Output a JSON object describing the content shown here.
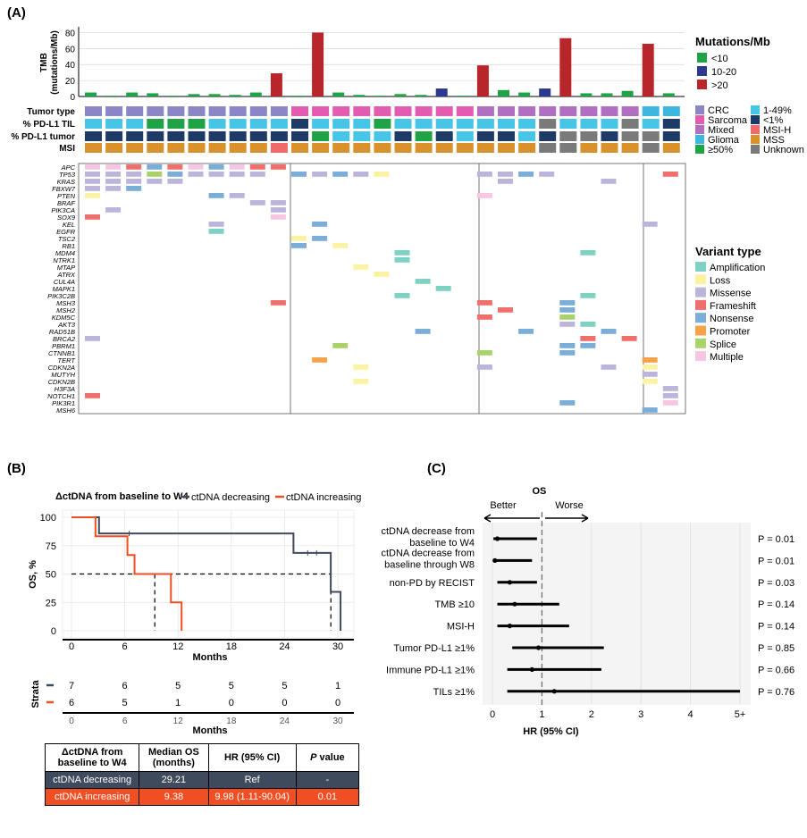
{
  "labels": {
    "a": "(A)",
    "b": "(B)",
    "c": "(C)"
  },
  "panelA": {
    "tmb_axis_label": "TMB\n(mutations/Mb)",
    "tmb_ticks": [
      "0",
      "20",
      "40",
      "60",
      "80"
    ],
    "tmb_values": [
      5,
      1,
      5,
      4,
      1,
      3,
      3,
      2,
      5,
      29,
      1,
      80,
      5,
      2,
      1,
      3,
      2,
      10,
      1,
      39,
      8,
      5,
      10,
      73,
      4,
      4,
      7,
      66,
      4
    ],
    "tmb_category": [
      "<10",
      "<10",
      "<10",
      "<10",
      "<10",
      "<10",
      "<10",
      "<10",
      "<10",
      ">20",
      "<10",
      ">20",
      "<10",
      "<10",
      "<10",
      "<10",
      "<10",
      "10-20",
      "<10",
      ">20",
      "<10",
      "<10",
      "10-20",
      ">20",
      "<10",
      "<10",
      "<10",
      ">20",
      "<10"
    ],
    "tmb_colors": {
      "<10": "#1fa346",
      "10-20": "#2b3a8f",
      ">20": "#b8262a"
    },
    "row_labels": [
      "Tumor type",
      "% PD-L1 TIL",
      "% PD-L1 tumor",
      "MSI"
    ],
    "tumor_type": [
      "CRC",
      "CRC",
      "CRC",
      "CRC",
      "CRC",
      "CRC",
      "CRC",
      "CRC",
      "CRC",
      "CRC",
      "Sarcoma",
      "Sarcoma",
      "Sarcoma",
      "Sarcoma",
      "Sarcoma",
      "Sarcoma",
      "Sarcoma",
      "Sarcoma",
      "Sarcoma",
      "Mixed",
      "Mixed",
      "Mixed",
      "Mixed",
      "Mixed",
      "Mixed",
      "Mixed",
      "Mixed",
      "Glioma",
      "Glioma"
    ],
    "pdl1_til": [
      "1-49%",
      "1-49%",
      "1-49%",
      "≥50%",
      "≥50%",
      "≥50%",
      "1-49%",
      "1-49%",
      "1-49%",
      "1-49%",
      "<1%",
      "1-49%",
      "1-49%",
      "1-49%",
      "≥50%",
      "1-49%",
      "1-49%",
      "1-49%",
      "1-49%",
      "1-49%",
      "1-49%",
      "1-49%",
      "Unknown",
      "1-49%",
      "1-49%",
      "1-49%",
      "Unknown",
      "1-49%",
      "<1%"
    ],
    "pdl1_tumor": [
      "<1%",
      "<1%",
      "<1%",
      "<1%",
      "<1%",
      "<1%",
      "<1%",
      "<1%",
      "<1%",
      "<1%",
      "<1%",
      "≥50%",
      "1-49%",
      "1-49%",
      "1-49%",
      "<1%",
      "≥50%",
      "<1%",
      "1-49%",
      "<1%",
      "<1%",
      "1-49%",
      "<1%",
      "Unknown",
      "Unknown",
      "<1%",
      "Unknown",
      "Unknown",
      "<1%"
    ],
    "msi": [
      "MSS",
      "MSS",
      "MSS",
      "MSS",
      "MSS",
      "MSS",
      "MSS",
      "MSS",
      "MSS",
      "MSI-H",
      "MSS",
      "MSS",
      "MSS",
      "MSS",
      "MSS",
      "MSS",
      "MSS",
      "MSS",
      "MSS",
      "MSS",
      "MSS",
      "MSS",
      "Unknown",
      "Unknown",
      "MSS",
      "MSS",
      "MSS",
      "Unknown",
      "MSS"
    ],
    "clin_colors": {
      "CRC": "#8b87c6",
      "Sarcoma": "#e25cb0",
      "Mixed": "#b06fc1",
      "Glioma": "#3fb6e0",
      "≥50%": "#1fa346",
      "1-49%": "#47c5e6",
      "<1%": "#1e3b68",
      "MSI-H": "#f06a6a",
      "MSS": "#d9922b",
      "Unknown": "#7a7a7a"
    },
    "legend_title_mut": "Mutations/Mb",
    "legend_mut": [
      "<10",
      "10-20",
      ">20"
    ],
    "legend_clin_left": [
      "CRC",
      "Sarcoma",
      "Mixed",
      "Glioma",
      "≥50%"
    ],
    "legend_clin_right": [
      "1-49%",
      "<1%",
      "MSI-H",
      "MSS",
      "Unknown"
    ],
    "genes": [
      "APC",
      "TP53",
      "KRAS",
      "FBXW7",
      "PTEN",
      "BRAF",
      "PIK3CA",
      "SOX9",
      "KEL",
      "EGFR",
      "TSC2",
      "RB1",
      "MDM4",
      "NTRK1",
      "MTAP",
      "ATRX",
      "CUL4A",
      "MAPK1",
      "PIK3C2B",
      "MSH3",
      "MSH2",
      "KDM5C",
      "AKT3",
      "RAD51B",
      "BRCA2",
      "PBRM1",
      "CTNNB1",
      "TERT",
      "CDKN2A",
      "MUTYH",
      "CDKN2B",
      "H3F3A",
      "NOTCH1",
      "PIK3R1",
      "MSH6"
    ],
    "variant_colors": {
      "Amplification": "#7fd2c1",
      "Loss": "#fbf3a4",
      "Missense": "#bdb4da",
      "Frameshift": "#ef6f6c",
      "Nonsense": "#7aaed8",
      "Promoter": "#f5a24a",
      "Splice": "#a9d36a",
      "Multiple": "#f6c6e2"
    },
    "legend_title_var": "Variant type",
    "legend_var": [
      "Amplification",
      "Loss",
      "Missense",
      "Frameshift",
      "Nonsense",
      "Promoter",
      "Splice",
      "Multiple"
    ],
    "mutations": [
      [
        0,
        0,
        "Multiple"
      ],
      [
        1,
        0,
        "Multiple"
      ],
      [
        2,
        0,
        "Frameshift"
      ],
      [
        3,
        0,
        "Nonsense"
      ],
      [
        4,
        0,
        "Frameshift"
      ],
      [
        5,
        0,
        "Multiple"
      ],
      [
        6,
        0,
        "Nonsense"
      ],
      [
        7,
        0,
        "Multiple"
      ],
      [
        8,
        0,
        "Frameshift"
      ],
      [
        9,
        0,
        "Frameshift"
      ],
      [
        0,
        1,
        "Missense"
      ],
      [
        1,
        1,
        "Missense"
      ],
      [
        2,
        1,
        "Missense"
      ],
      [
        3,
        1,
        "Splice"
      ],
      [
        4,
        1,
        "Nonsense"
      ],
      [
        5,
        1,
        "Missense"
      ],
      [
        6,
        1,
        "Missense"
      ],
      [
        7,
        1,
        "Missense"
      ],
      [
        8,
        1,
        "Missense"
      ],
      [
        10,
        1,
        "Nonsense"
      ],
      [
        11,
        1,
        "Missense"
      ],
      [
        12,
        1,
        "Nonsense"
      ],
      [
        13,
        1,
        "Missense"
      ],
      [
        14,
        1,
        "Loss"
      ],
      [
        19,
        1,
        "Missense"
      ],
      [
        20,
        1,
        "Missense"
      ],
      [
        21,
        1,
        "Nonsense"
      ],
      [
        22,
        1,
        "Missense"
      ],
      [
        28,
        1,
        "Frameshift"
      ],
      [
        0,
        2,
        "Missense"
      ],
      [
        1,
        2,
        "Missense"
      ],
      [
        2,
        2,
        "Missense"
      ],
      [
        3,
        2,
        "Missense"
      ],
      [
        4,
        2,
        "Missense"
      ],
      [
        20,
        2,
        "Missense"
      ],
      [
        25,
        2,
        "Missense"
      ],
      [
        0,
        3,
        "Missense"
      ],
      [
        1,
        3,
        "Missense"
      ],
      [
        2,
        3,
        "Nonsense"
      ],
      [
        0,
        4,
        "Loss"
      ],
      [
        6,
        4,
        "Nonsense"
      ],
      [
        7,
        4,
        "Missense"
      ],
      [
        19,
        4,
        "Multiple"
      ],
      [
        8,
        5,
        "Missense"
      ],
      [
        9,
        5,
        "Missense"
      ],
      [
        1,
        6,
        "Missense"
      ],
      [
        9,
        6,
        "Missense"
      ],
      [
        0,
        7,
        "Frameshift"
      ],
      [
        9,
        7,
        "Multiple"
      ],
      [
        6,
        8,
        "Missense"
      ],
      [
        11,
        8,
        "Nonsense"
      ],
      [
        27,
        8,
        "Missense"
      ],
      [
        6,
        9,
        "Amplification"
      ],
      [
        10,
        10,
        "Loss"
      ],
      [
        11,
        10,
        "Nonsense"
      ],
      [
        10,
        11,
        "Nonsense"
      ],
      [
        12,
        11,
        "Loss"
      ],
      [
        15,
        12,
        "Amplification"
      ],
      [
        24,
        12,
        "Amplification"
      ],
      [
        15,
        13,
        "Amplification"
      ],
      [
        13,
        14,
        "Loss"
      ],
      [
        14,
        15,
        "Loss"
      ],
      [
        16,
        16,
        "Amplification"
      ],
      [
        17,
        17,
        "Amplification"
      ],
      [
        15,
        18,
        "Amplification"
      ],
      [
        24,
        18,
        "Amplification"
      ],
      [
        9,
        19,
        "Frameshift"
      ],
      [
        19,
        19,
        "Frameshift"
      ],
      [
        23,
        19,
        "Nonsense"
      ],
      [
        20,
        20,
        "Frameshift"
      ],
      [
        23,
        20,
        "Nonsense"
      ],
      [
        19,
        21,
        "Frameshift"
      ],
      [
        23,
        21,
        "Splice"
      ],
      [
        23,
        22,
        "Missense"
      ],
      [
        24,
        22,
        "Amplification"
      ],
      [
        16,
        23,
        "Nonsense"
      ],
      [
        21,
        23,
        "Nonsense"
      ],
      [
        25,
        23,
        "Nonsense"
      ],
      [
        0,
        24,
        "Missense"
      ],
      [
        24,
        24,
        "Frameshift"
      ],
      [
        26,
        24,
        "Frameshift"
      ],
      [
        12,
        25,
        "Splice"
      ],
      [
        23,
        25,
        "Nonsense"
      ],
      [
        24,
        25,
        "Nonsense"
      ],
      [
        19,
        26,
        "Splice"
      ],
      [
        23,
        26,
        "Nonsense"
      ],
      [
        11,
        27,
        "Promoter"
      ],
      [
        27,
        27,
        "Promoter"
      ],
      [
        13,
        28,
        "Loss"
      ],
      [
        19,
        28,
        "Missense"
      ],
      [
        25,
        28,
        "Missense"
      ],
      [
        27,
        28,
        "Loss"
      ],
      [
        27,
        29,
        "Missense"
      ],
      [
        13,
        30,
        "Loss"
      ],
      [
        27,
        30,
        "Loss"
      ],
      [
        28,
        31,
        "Missense"
      ],
      [
        0,
        32,
        "Frameshift"
      ],
      [
        28,
        32,
        "Missense"
      ],
      [
        23,
        33,
        "Nonsense"
      ],
      [
        28,
        33,
        "Multiple"
      ],
      [
        27,
        34,
        "Nonsense"
      ]
    ]
  },
  "panelB": {
    "title": "ΔctDNA from baseline to W4",
    "legend": [
      "ctDNA decreasing",
      "ctDNA increasing"
    ],
    "colors": {
      "dec": "#3f4a5c",
      "inc": "#f04e23"
    },
    "ylabel": "OS, %",
    "xlabel": "Months",
    "yticks": [
      "0",
      "25",
      "50",
      "75",
      "100"
    ],
    "xticks": [
      "0",
      "6",
      "12",
      "18",
      "24",
      "30"
    ],
    "strata_label": "Strata",
    "risk_dec": [
      "7",
      "6",
      "5",
      "5",
      "5",
      "1"
    ],
    "risk_inc": [
      "6",
      "5",
      "1",
      "0",
      "0",
      "0"
    ],
    "risk_xlabel": "Months",
    "median_dec": 29.21,
    "median_inc": 9.38,
    "table": {
      "headers": [
        "ΔctDNA from baseline to W4",
        "Median OS (months)",
        "HR (95% CI)",
        "P value"
      ],
      "dec": [
        "ctDNA decreasing",
        "29.21",
        "Ref",
        "-"
      ],
      "inc": [
        "ctDNA increasing",
        "9.38",
        "9.98 (1.11-90.04)",
        "0.01"
      ]
    }
  },
  "chart_data": [
    {
      "type": "line",
      "title": "ΔctDNA from baseline to W4",
      "xlabel": "Months",
      "ylabel": "OS, %",
      "xlim": [
        0,
        31
      ],
      "ylim": [
        0,
        100
      ],
      "series": [
        {
          "name": "ctDNA decreasing",
          "x": [
            0,
            3.1,
            3.1,
            25,
            25,
            29.2,
            29.2,
            30.3,
            30.3
          ],
          "y": [
            100,
            100,
            85.7,
            85.7,
            68.6,
            68.6,
            34.3,
            34.3,
            0
          ]
        },
        {
          "name": "ctDNA increasing",
          "x": [
            0,
            2.7,
            2.7,
            6.3,
            6.3,
            7.1,
            7.1,
            11.2,
            11.2,
            12.4,
            12.4
          ],
          "y": [
            100,
            100,
            83.3,
            83.3,
            66.7,
            66.7,
            50,
            50,
            25,
            25,
            0
          ]
        }
      ]
    },
    {
      "type": "scatter",
      "title": "OS",
      "xlabel": "HR (95% CI)",
      "direction_labels": [
        "Better",
        "Worse"
      ],
      "xticks": [
        "0",
        "1",
        "2",
        "3",
        "4",
        "5+"
      ],
      "rows": [
        {
          "label": "ctDNA decrease from\nbaseline to W4",
          "hr": 0.1,
          "lo": 0.02,
          "hi": 0.9,
          "p": "P = 0.01"
        },
        {
          "label": "ctDNA decrease from\nbaseline through W8",
          "hr": 0.05,
          "lo": 0.01,
          "hi": 0.8,
          "p": "P = 0.01"
        },
        {
          "label": "non-PD by RECIST",
          "hr": 0.35,
          "lo": 0.1,
          "hi": 0.9,
          "p": "P = 0.03"
        },
        {
          "label": "TMB ≥10",
          "hr": 0.45,
          "lo": 0.1,
          "hi": 1.35,
          "p": "P = 0.14"
        },
        {
          "label": "MSI-H",
          "hr": 0.35,
          "lo": 0.1,
          "hi": 1.55,
          "p": "P = 0.14"
        },
        {
          "label": "Tumor PD-L1 ≥1%",
          "hr": 0.93,
          "lo": 0.4,
          "hi": 2.25,
          "p": "P = 0.85"
        },
        {
          "label": "Immune PD-L1 ≥1%",
          "hr": 0.8,
          "lo": 0.3,
          "hi": 2.2,
          "p": "P = 0.66"
        },
        {
          "label": "TILs ≥1%",
          "hr": 1.25,
          "lo": 0.3,
          "hi": 5.0,
          "p": "P = 0.76"
        }
      ]
    }
  ]
}
